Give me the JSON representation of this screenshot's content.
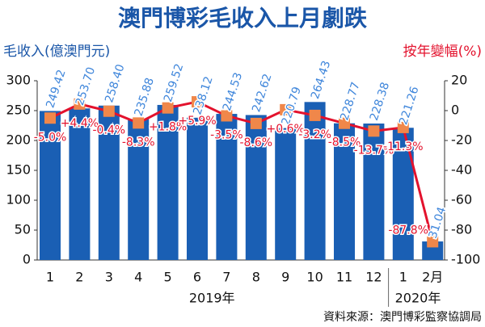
{
  "chart_data": {
    "type": "bar",
    "title": "澳門博彩毛收入上月劇跌",
    "y_label": "毛收入(億澳門元)",
    "y2_label": "按年變幅(%)",
    "categories": [
      "1",
      "2",
      "3",
      "4",
      "5",
      "6",
      "7",
      "8",
      "9",
      "10",
      "11",
      "12",
      "1",
      "2月"
    ],
    "groups": [
      {
        "label": "2019年",
        "count": 12
      },
      {
        "label": "2020年",
        "count": 2
      }
    ],
    "series": [
      {
        "type": "bar",
        "color": "#1a5fb4",
        "label_color": "#3f86db",
        "values": [
          249.42,
          253.7,
          258.4,
          235.88,
          259.52,
          238.12,
          244.53,
          242.62,
          220.79,
          264.43,
          228.77,
          228.38,
          221.26,
          31.04
        ],
        "value_labels": [
          "249.42",
          "253.70",
          "258.40",
          "235.88",
          "259.52",
          "238.12",
          "244.53",
          "242.62",
          "220.79",
          "264.43",
          "228.77",
          "228.38",
          "221.26",
          "31.04"
        ]
      },
      {
        "type": "line",
        "axis": "y2",
        "color": "#e3122d",
        "marker_color": "#f0874a",
        "values": [
          -5.0,
          4.4,
          -0.4,
          -8.3,
          1.8,
          5.9,
          -3.5,
          -8.6,
          0.6,
          -3.2,
          -8.5,
          -13.7,
          -11.3,
          -87.8
        ],
        "value_labels": [
          "-5.0%",
          "+4.4%",
          "-0.4%",
          "-8.3%",
          "+1.8%",
          "+5.9%",
          "-3.5%",
          "-8.6%",
          "+0.6%",
          "-3.2%",
          "-8.5%",
          "-13.7%",
          "-11.3%",
          "-87.8%"
        ]
      }
    ],
    "ylim": [
      0,
      300
    ],
    "yticks": [
      0,
      50,
      100,
      150,
      200,
      250,
      300
    ],
    "y2lim": [
      -100,
      20
    ],
    "y2ticks": [
      -100,
      -80,
      -60,
      -40,
      -20,
      0,
      20
    ],
    "source": "資料來源：澳門博彩監察協調局"
  }
}
